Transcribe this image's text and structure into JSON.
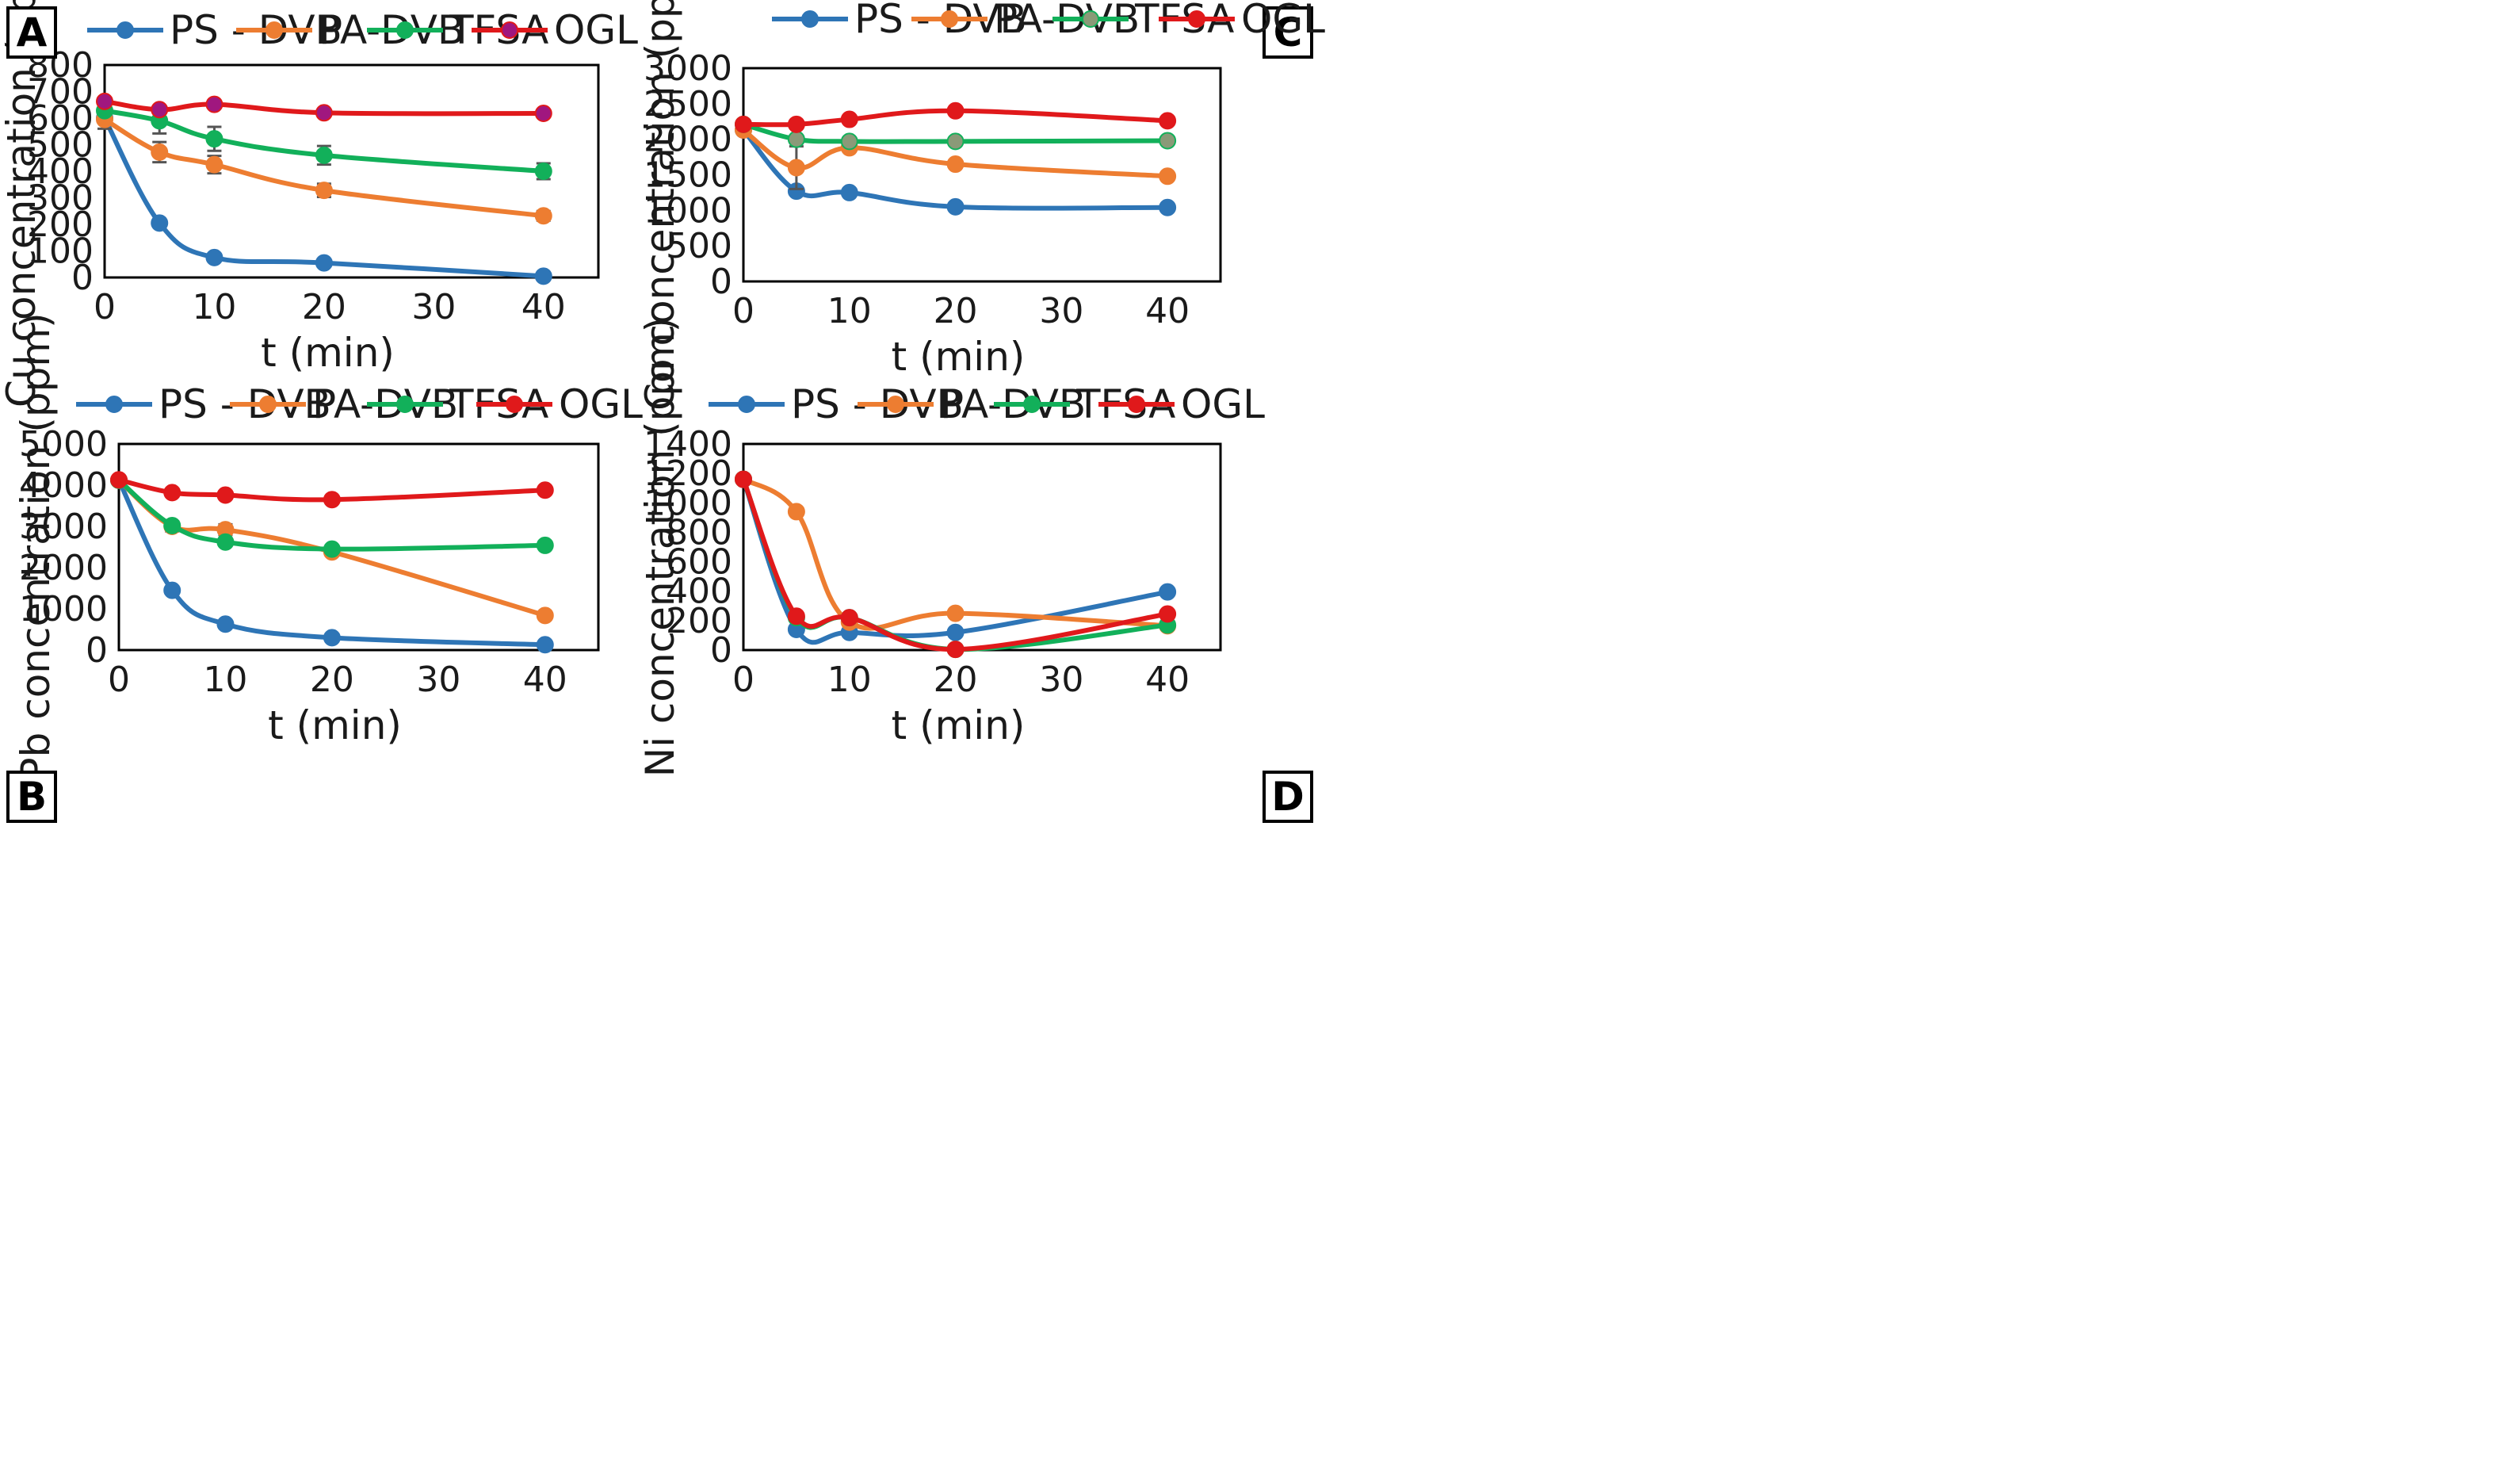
{
  "chart_data": [
    {
      "type": "line",
      "panel_label": "A",
      "xlabel": "t (min)",
      "ylabel": "Cu concentration (ppm)",
      "xlim": [
        0,
        45
      ],
      "ylim": [
        0,
        800
      ],
      "x_ticks": [
        0,
        10,
        20,
        30,
        40
      ],
      "y_ticks": [
        0,
        100,
        200,
        300,
        400,
        500,
        600,
        700,
        800
      ],
      "legend_position": "top",
      "colors": {
        "PS - DVB": "#2E75B6",
        "PA-DVB": "#ED7D31",
        "TFSA": "#12B05A",
        "OGL": "#E0191B"
      },
      "series": [
        {
          "name": "PS - DVB",
          "color": "#2E75B6",
          "x": [
            0,
            5,
            10,
            20,
            40
          ],
          "values": [
            600,
            205,
            75,
            55,
            5
          ],
          "errors": [
            40,
            12,
            0,
            0,
            0
          ]
        },
        {
          "name": "PA-DVB",
          "color": "#ED7D31",
          "x": [
            0,
            5,
            10,
            20,
            40
          ],
          "values": [
            595,
            472,
            425,
            328,
            232
          ],
          "errors": [
            0,
            38,
            33,
            25,
            18
          ]
        },
        {
          "name": "TFSA",
          "color": "#12B05A",
          "x": [
            0,
            5,
            10,
            20,
            40
          ],
          "values": [
            628,
            590,
            522,
            460,
            400
          ],
          "errors": [
            0,
            48,
            45,
            35,
            30
          ]
        },
        {
          "name": "OGL",
          "color": "#E0191B",
          "marker_color": "#A0177F",
          "x": [
            0,
            5,
            10,
            20,
            40
          ],
          "values": [
            663,
            632,
            652,
            620,
            618
          ],
          "errors": [
            0,
            0,
            0,
            0,
            0
          ]
        }
      ]
    },
    {
      "type": "line",
      "panel_label": "B",
      "xlabel": "t (min)",
      "ylabel": "Pb concentration (ppm)",
      "xlim": [
        0,
        45
      ],
      "ylim": [
        0,
        5000
      ],
      "x_ticks": [
        0,
        10,
        20,
        30,
        40
      ],
      "y_ticks": [
        0,
        1000,
        2000,
        3000,
        4000,
        5000
      ],
      "legend_position": "top",
      "series": [
        {
          "name": "PS - DVB",
          "color": "#2E75B6",
          "x": [
            0,
            5,
            10,
            20,
            40
          ],
          "values": [
            4120,
            1450,
            630,
            300,
            130
          ],
          "errors": [
            0,
            0,
            0,
            0,
            0
          ]
        },
        {
          "name": "PA-DVB",
          "color": "#ED7D31",
          "x": [
            0,
            5,
            10,
            20,
            40
          ],
          "values": [
            4120,
            3000,
            2920,
            2380,
            840
          ],
          "errors": [
            0,
            120,
            130,
            0,
            0
          ]
        },
        {
          "name": "TFSA",
          "color": "#12B05A",
          "x": [
            0,
            5,
            10,
            20,
            40
          ],
          "values": [
            4120,
            3020,
            2620,
            2450,
            2540
          ],
          "errors": [
            0,
            0,
            0,
            0,
            0
          ]
        },
        {
          "name": "OGL",
          "color": "#E0191B",
          "x": [
            0,
            5,
            10,
            20,
            40
          ],
          "values": [
            4130,
            3820,
            3760,
            3650,
            3880
          ],
          "errors": [
            0,
            0,
            0,
            0,
            0
          ]
        }
      ]
    },
    {
      "type": "line",
      "panel_label": "C",
      "xlabel": "t (min)",
      "ylabel": "Co concentration (ppm)",
      "xlim": [
        0,
        45
      ],
      "ylim": [
        0,
        3000
      ],
      "x_ticks": [
        0,
        10,
        20,
        30,
        40
      ],
      "y_ticks": [
        0,
        500,
        1000,
        1500,
        2000,
        2500,
        3000
      ],
      "legend_position": "top",
      "series": [
        {
          "name": "PS - DVB",
          "color": "#2E75B6",
          "x": [
            0,
            5,
            10,
            20,
            40
          ],
          "values": [
            2130,
            1270,
            1250,
            1050,
            1040
          ],
          "errors": [
            0,
            0,
            0,
            0,
            0
          ]
        },
        {
          "name": "PA-DVB",
          "color": "#ED7D31",
          "x": [
            0,
            5,
            10,
            20,
            40
          ],
          "values": [
            2130,
            1600,
            1880,
            1650,
            1480
          ],
          "errors": [
            0,
            300,
            0,
            0,
            0
          ]
        },
        {
          "name": "TFSA",
          "color": "#12B05A",
          "marker_color": "#8A9A78",
          "x": [
            0,
            5,
            10,
            20,
            40
          ],
          "values": [
            2210,
            2000,
            1970,
            1970,
            1980
          ],
          "errors": [
            0,
            0,
            0,
            0,
            0
          ]
        },
        {
          "name": "OGL",
          "color": "#E0191B",
          "x": [
            0,
            5,
            10,
            20,
            40
          ],
          "values": [
            2210,
            2210,
            2280,
            2400,
            2260
          ],
          "errors": [
            0,
            0,
            0,
            0,
            0
          ]
        }
      ]
    },
    {
      "type": "line",
      "panel_label": "D",
      "xlabel": "t (min)",
      "ylabel": "Ni concentration (ppm)",
      "xlim": [
        0,
        45
      ],
      "ylim": [
        0,
        1400
      ],
      "x_ticks": [
        0,
        10,
        20,
        30,
        40
      ],
      "y_ticks": [
        0,
        200,
        400,
        600,
        800,
        1000,
        1200,
        1400
      ],
      "legend_position": "top",
      "series": [
        {
          "name": "PS - DVB",
          "color": "#2E75B6",
          "x": [
            0,
            5,
            10,
            20,
            40
          ],
          "values": [
            1160,
            140,
            120,
            120,
            395
          ],
          "errors": [
            0,
            0,
            0,
            0,
            0
          ]
        },
        {
          "name": "PA-DVB",
          "color": "#ED7D31",
          "x": [
            0,
            5,
            10,
            20,
            40
          ],
          "values": [
            1160,
            940,
            190,
            250,
            165
          ],
          "errors": [
            0,
            0,
            0,
            0,
            0
          ]
        },
        {
          "name": "TFSA",
          "color": "#12B05A",
          "x": [
            0,
            5,
            10,
            20,
            40
          ],
          "values": [
            1160,
            220,
            220,
            5,
            170
          ],
          "errors": [
            0,
            0,
            0,
            0,
            0
          ]
        },
        {
          "name": "OGL",
          "color": "#E0191B",
          "x": [
            0,
            5,
            10,
            20,
            40
          ],
          "values": [
            1160,
            230,
            220,
            5,
            245
          ],
          "errors": [
            0,
            0,
            0,
            0,
            0
          ]
        }
      ]
    }
  ]
}
